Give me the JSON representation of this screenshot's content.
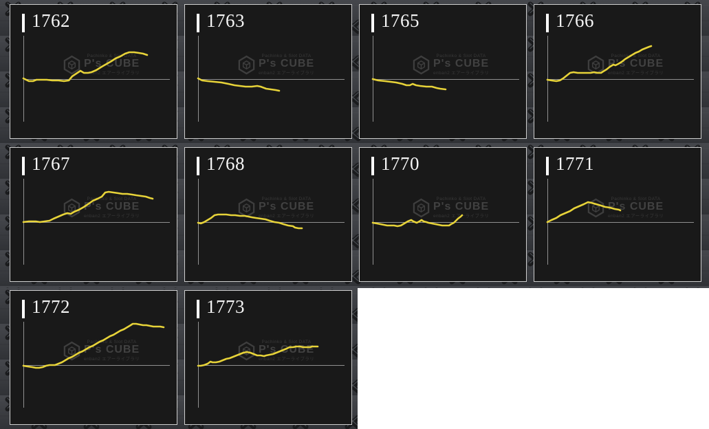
{
  "page": {
    "background_color": "#ffffff",
    "texture_base_color": "#3b3d41",
    "panel_background": "#191919",
    "panel_border_color": "#cfcfcf"
  },
  "accent": {
    "sparkline_color": "#e7d339",
    "axis_color": "#919191",
    "title_color": "#ffffff"
  },
  "watermark": {
    "logo": "ps-cube-hex-cube-icon",
    "line_top": "Pachinko & Slot DATA",
    "brand": "P's CUBE",
    "line_bottom": "enban2 エアーライブラリ"
  },
  "chart_data": [
    {
      "type": "line",
      "title": "1762",
      "axes_labeled": false,
      "legend": false,
      "grid": false,
      "x_unit": "px right of y-axis (no tick labels shown)",
      "y_unit": "px above zero baseline (no tick labels shown)",
      "points": [
        [
          0,
          1
        ],
        [
          8,
          -3
        ],
        [
          14,
          -3
        ],
        [
          19,
          -1
        ],
        [
          26,
          -1
        ],
        [
          34,
          -1
        ],
        [
          42,
          -2
        ],
        [
          51,
          -2
        ],
        [
          59,
          -3
        ],
        [
          66,
          -2
        ],
        [
          71,
          4
        ],
        [
          77,
          8
        ],
        [
          83,
          12
        ],
        [
          88,
          9
        ],
        [
          94,
          9
        ],
        [
          99,
          10
        ],
        [
          106,
          13
        ],
        [
          114,
          18
        ],
        [
          121,
          22
        ],
        [
          128,
          26
        ],
        [
          134,
          30
        ],
        [
          141,
          33
        ],
        [
          148,
          37
        ],
        [
          154,
          39
        ],
        [
          161,
          39
        ],
        [
          168,
          38
        ],
        [
          174,
          37
        ],
        [
          180,
          35
        ]
      ]
    },
    {
      "type": "line",
      "title": "1763",
      "axes_labeled": false,
      "legend": false,
      "grid": false,
      "x_unit": "px right of y-axis (no tick labels shown)",
      "y_unit": "px above zero baseline (no tick labels shown)",
      "points": [
        [
          0,
          1
        ],
        [
          6,
          -2
        ],
        [
          14,
          -3
        ],
        [
          24,
          -4
        ],
        [
          34,
          -5
        ],
        [
          44,
          -7
        ],
        [
          53,
          -9
        ],
        [
          61,
          -10
        ],
        [
          69,
          -11
        ],
        [
          78,
          -11
        ],
        [
          86,
          -10
        ],
        [
          91,
          -11
        ],
        [
          99,
          -14
        ],
        [
          106,
          -15
        ],
        [
          113,
          -16
        ],
        [
          118,
          -17
        ]
      ]
    },
    {
      "type": "line",
      "title": "1765",
      "axes_labeled": false,
      "legend": false,
      "grid": false,
      "x_unit": "px right of y-axis (no tick labels shown)",
      "y_unit": "px above zero baseline (no tick labels shown)",
      "points": [
        [
          0,
          0
        ],
        [
          8,
          -2
        ],
        [
          18,
          -3
        ],
        [
          26,
          -4
        ],
        [
          34,
          -5
        ],
        [
          43,
          -7
        ],
        [
          49,
          -9
        ],
        [
          54,
          -9
        ],
        [
          58,
          -7
        ],
        [
          63,
          -9
        ],
        [
          69,
          -10
        ],
        [
          78,
          -11
        ],
        [
          86,
          -11
        ],
        [
          93,
          -13
        ],
        [
          98,
          -14
        ],
        [
          106,
          -15
        ]
      ]
    },
    {
      "type": "line",
      "title": "1766",
      "axes_labeled": false,
      "legend": false,
      "grid": false,
      "x_unit": "px right of y-axis (no tick labels shown)",
      "y_unit": "px above zero baseline (no tick labels shown)",
      "points": [
        [
          0,
          -1
        ],
        [
          6,
          -2
        ],
        [
          13,
          -3
        ],
        [
          18,
          -2
        ],
        [
          23,
          1
        ],
        [
          28,
          5
        ],
        [
          33,
          9
        ],
        [
          38,
          10
        ],
        [
          44,
          9
        ],
        [
          53,
          9
        ],
        [
          63,
          9
        ],
        [
          68,
          10
        ],
        [
          73,
          9
        ],
        [
          78,
          9
        ],
        [
          81,
          11
        ],
        [
          86,
          14
        ],
        [
          91,
          18
        ],
        [
          96,
          21
        ],
        [
          99,
          20
        ],
        [
          103,
          22
        ],
        [
          108,
          25
        ],
        [
          113,
          29
        ],
        [
          118,
          32
        ],
        [
          123,
          35
        ],
        [
          128,
          38
        ],
        [
          133,
          40
        ],
        [
          138,
          43
        ],
        [
          143,
          45
        ],
        [
          148,
          47
        ],
        [
          151,
          48
        ]
      ]
    },
    {
      "type": "line",
      "title": "1767",
      "axes_labeled": false,
      "legend": false,
      "grid": false,
      "x_unit": "px right of y-axis (no tick labels shown)",
      "y_unit": "px above zero baseline (no tick labels shown)",
      "points": [
        [
          0,
          0
        ],
        [
          8,
          1
        ],
        [
          13,
          1
        ],
        [
          18,
          1
        ],
        [
          24,
          0
        ],
        [
          31,
          1
        ],
        [
          38,
          2
        ],
        [
          44,
          5
        ],
        [
          51,
          8
        ],
        [
          58,
          11
        ],
        [
          64,
          13
        ],
        [
          69,
          12
        ],
        [
          74,
          15
        ],
        [
          81,
          18
        ],
        [
          88,
          22
        ],
        [
          94,
          26
        ],
        [
          101,
          31
        ],
        [
          108,
          34
        ],
        [
          114,
          37
        ],
        [
          119,
          43
        ],
        [
          124,
          44
        ],
        [
          131,
          43
        ],
        [
          138,
          42
        ],
        [
          144,
          41
        ],
        [
          151,
          41
        ],
        [
          158,
          40
        ],
        [
          164,
          39
        ],
        [
          171,
          38
        ],
        [
          178,
          37
        ],
        [
          184,
          35
        ],
        [
          188,
          34
        ]
      ]
    },
    {
      "type": "line",
      "title": "1768",
      "axes_labeled": false,
      "legend": false,
      "grid": false,
      "x_unit": "px right of y-axis (no tick labels shown)",
      "y_unit": "px above zero baseline (no tick labels shown)",
      "points": [
        [
          0,
          -1
        ],
        [
          4,
          -2
        ],
        [
          9,
          0
        ],
        [
          14,
          3
        ],
        [
          19,
          6
        ],
        [
          24,
          10
        ],
        [
          29,
          11
        ],
        [
          34,
          11
        ],
        [
          41,
          11
        ],
        [
          48,
          10
        ],
        [
          54,
          10
        ],
        [
          61,
          9
        ],
        [
          68,
          9
        ],
        [
          73,
          8
        ],
        [
          78,
          7
        ],
        [
          84,
          6
        ],
        [
          91,
          5
        ],
        [
          98,
          4
        ],
        [
          104,
          2
        ],
        [
          111,
          0
        ],
        [
          118,
          -1
        ],
        [
          124,
          -3
        ],
        [
          131,
          -5
        ],
        [
          138,
          -6
        ],
        [
          141,
          -8
        ],
        [
          146,
          -9
        ],
        [
          151,
          -9
        ]
      ]
    },
    {
      "type": "line",
      "title": "1770",
      "axes_labeled": false,
      "legend": false,
      "grid": false,
      "x_unit": "px right of y-axis (no tick labels shown)",
      "y_unit": "px above zero baseline (no tick labels shown)",
      "points": [
        [
          0,
          -1
        ],
        [
          6,
          -2
        ],
        [
          11,
          -3
        ],
        [
          16,
          -4
        ],
        [
          21,
          -5
        ],
        [
          26,
          -5
        ],
        [
          31,
          -5
        ],
        [
          36,
          -6
        ],
        [
          41,
          -5
        ],
        [
          46,
          -2
        ],
        [
          51,
          1
        ],
        [
          56,
          3
        ],
        [
          59,
          1
        ],
        [
          64,
          -1
        ],
        [
          68,
          1
        ],
        [
          71,
          3
        ],
        [
          74,
          1
        ],
        [
          78,
          0
        ],
        [
          81,
          -1
        ],
        [
          86,
          -2
        ],
        [
          91,
          -3
        ],
        [
          96,
          -4
        ],
        [
          101,
          -5
        ],
        [
          106,
          -5
        ],
        [
          111,
          -5
        ],
        [
          114,
          -3
        ],
        [
          118,
          -1
        ],
        [
          121,
          2
        ],
        [
          124,
          5
        ],
        [
          128,
          8
        ],
        [
          130,
          10
        ]
      ]
    },
    {
      "type": "line",
      "title": "1771",
      "axes_labeled": false,
      "legend": false,
      "grid": false,
      "x_unit": "px right of y-axis (no tick labels shown)",
      "y_unit": "px above zero baseline (no tick labels shown)",
      "points": [
        [
          0,
          0
        ],
        [
          6,
          3
        ],
        [
          13,
          6
        ],
        [
          19,
          10
        ],
        [
          26,
          13
        ],
        [
          33,
          16
        ],
        [
          39,
          20
        ],
        [
          46,
          23
        ],
        [
          53,
          26
        ],
        [
          59,
          29
        ],
        [
          64,
          28
        ],
        [
          71,
          26
        ],
        [
          78,
          24
        ],
        [
          84,
          22
        ],
        [
          91,
          21
        ],
        [
          98,
          19
        ],
        [
          104,
          18
        ],
        [
          106,
          17
        ]
      ]
    },
    {
      "type": "line",
      "title": "1772",
      "axes_labeled": false,
      "legend": false,
      "grid": false,
      "x_unit": "px right of y-axis (no tick labels shown)",
      "y_unit": "px above zero baseline (no tick labels shown)",
      "points": [
        [
          0,
          -1
        ],
        [
          6,
          -2
        ],
        [
          13,
          -3
        ],
        [
          18,
          -4
        ],
        [
          23,
          -4
        ],
        [
          28,
          -3
        ],
        [
          33,
          -1
        ],
        [
          38,
          0
        ],
        [
          46,
          0
        ],
        [
          51,
          2
        ],
        [
          56,
          4
        ],
        [
          61,
          7
        ],
        [
          66,
          10
        ],
        [
          71,
          12
        ],
        [
          76,
          15
        ],
        [
          81,
          18
        ],
        [
          86,
          20
        ],
        [
          91,
          23
        ],
        [
          96,
          26
        ],
        [
          101,
          28
        ],
        [
          106,
          31
        ],
        [
          111,
          34
        ],
        [
          116,
          36
        ],
        [
          121,
          39
        ],
        [
          126,
          42
        ],
        [
          131,
          44
        ],
        [
          136,
          47
        ],
        [
          141,
          50
        ],
        [
          146,
          52
        ],
        [
          151,
          55
        ],
        [
          156,
          58
        ],
        [
          159,
          60
        ],
        [
          164,
          60
        ],
        [
          169,
          59
        ],
        [
          174,
          58
        ],
        [
          179,
          58
        ],
        [
          184,
          57
        ],
        [
          189,
          56
        ],
        [
          194,
          56
        ],
        [
          199,
          56
        ],
        [
          204,
          55
        ]
      ]
    },
    {
      "type": "line",
      "title": "1773",
      "axes_labeled": false,
      "legend": false,
      "grid": false,
      "x_unit": "px right of y-axis (no tick labels shown)",
      "y_unit": "px above zero baseline (no tick labels shown)",
      "points": [
        [
          0,
          -1
        ],
        [
          4,
          -1
        ],
        [
          9,
          0
        ],
        [
          14,
          2
        ],
        [
          18,
          5
        ],
        [
          21,
          4
        ],
        [
          26,
          4
        ],
        [
          31,
          5
        ],
        [
          36,
          7
        ],
        [
          41,
          9
        ],
        [
          46,
          10
        ],
        [
          51,
          12
        ],
        [
          56,
          14
        ],
        [
          61,
          16
        ],
        [
          66,
          18
        ],
        [
          71,
          19
        ],
        [
          76,
          18
        ],
        [
          81,
          16
        ],
        [
          86,
          14
        ],
        [
          91,
          14
        ],
        [
          96,
          13
        ],
        [
          99,
          14
        ],
        [
          104,
          15
        ],
        [
          109,
          16
        ],
        [
          114,
          18
        ],
        [
          119,
          20
        ],
        [
          124,
          22
        ],
        [
          129,
          24
        ],
        [
          133,
          26
        ],
        [
          138,
          26
        ],
        [
          143,
          27
        ],
        [
          148,
          27
        ],
        [
          153,
          26
        ],
        [
          158,
          26
        ],
        [
          163,
          26
        ],
        [
          166,
          27
        ],
        [
          171,
          27
        ],
        [
          174,
          27
        ]
      ]
    }
  ]
}
